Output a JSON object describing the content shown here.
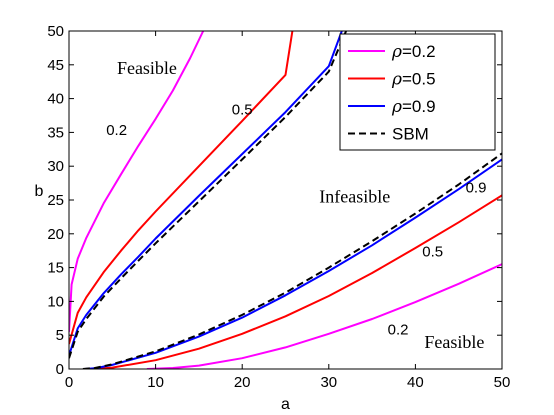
{
  "chart_data": {
    "type": "line",
    "title": "",
    "xlabel": "a",
    "ylabel": "b",
    "xlim": [
      0,
      50
    ],
    "ylim": [
      0,
      50
    ],
    "xticks": [
      0,
      10,
      20,
      30,
      40,
      50
    ],
    "yticks": [
      0,
      5,
      10,
      15,
      20,
      25,
      30,
      35,
      40,
      45,
      50
    ],
    "grid": false,
    "legend_position": "top-right",
    "series": [
      {
        "name": "ρ=0.2",
        "legend_symbol": "ρ",
        "legend_value": "=0.2",
        "color": "#ff00ff",
        "style": "solid",
        "branch": "upper",
        "x": [
          0,
          0.3,
          1,
          2,
          4,
          6,
          8,
          10,
          12,
          14,
          15.5
        ],
        "y": [
          5.5,
          12.5,
          16.3,
          19.4,
          24.5,
          28.8,
          33,
          37,
          41.2,
          46,
          50
        ]
      },
      {
        "name": "ρ=0.2",
        "color": "#ff00ff",
        "style": "solid",
        "branch": "lower",
        "x": [
          9,
          12,
          15,
          20,
          25,
          30,
          35,
          40,
          45,
          50
        ],
        "y": [
          0,
          0.15,
          0.5,
          1.6,
          3.2,
          5.2,
          7.4,
          9.9,
          12.6,
          15.5
        ]
      },
      {
        "name": "ρ=0.5",
        "legend_symbol": "ρ",
        "legend_value": "=0.5",
        "color": "#ff0000",
        "style": "solid",
        "branch": "upper",
        "x": [
          0,
          1,
          2,
          4,
          6,
          8,
          10,
          15,
          20,
          25,
          25.8
        ],
        "y": [
          3.7,
          8.3,
          10.6,
          14.3,
          17.5,
          20.5,
          23.3,
          30,
          36.7,
          43.5,
          50
        ]
      },
      {
        "name": "ρ=0.5",
        "color": "#ff0000",
        "style": "solid",
        "branch": "lower",
        "x": [
          3,
          5,
          10,
          15,
          20,
          25,
          30,
          35,
          40,
          45,
          50
        ],
        "y": [
          0,
          0.2,
          1.3,
          3,
          5.2,
          7.8,
          10.8,
          14.2,
          17.9,
          21.7,
          25.7
        ]
      },
      {
        "name": "ρ=0.9",
        "legend_symbol": "ρ",
        "legend_value": "=0.9",
        "color": "#0000ff",
        "style": "solid",
        "branch": "upper",
        "x": [
          0,
          1,
          2,
          4,
          6,
          8,
          10,
          15,
          20,
          25,
          30,
          31.5
        ],
        "y": [
          2,
          6,
          8,
          11.2,
          14,
          16.6,
          19.3,
          25.6,
          31.8,
          38,
          44.8,
          50
        ]
      },
      {
        "name": "ρ=0.9",
        "color": "#0000ff",
        "style": "solid",
        "branch": "lower",
        "x": [
          1.8,
          3,
          5,
          10,
          15,
          20,
          25,
          30,
          35,
          40,
          45,
          50
        ],
        "y": [
          0,
          0.1,
          0.6,
          2.4,
          4.8,
          7.6,
          10.9,
          14.5,
          18.3,
          22.4,
          26.6,
          31
        ]
      },
      {
        "name": "SBM",
        "legend_symbol": "",
        "legend_value": "SBM",
        "color": "#000000",
        "style": "dashed",
        "branch": "upper",
        "x": [
          0,
          1,
          2,
          4,
          6,
          8,
          10,
          15,
          20,
          25,
          30,
          32
        ],
        "y": [
          1.6,
          5.5,
          7.4,
          10.7,
          13.4,
          16,
          18.6,
          24.8,
          31,
          37.3,
          44,
          50
        ]
      },
      {
        "name": "SBM",
        "color": "#000000",
        "style": "dashed",
        "branch": "lower",
        "x": [
          1.6,
          3,
          5,
          10,
          15,
          20,
          25,
          30,
          35,
          40,
          45,
          50
        ],
        "y": [
          0,
          0.15,
          0.7,
          2.6,
          5.1,
          8,
          11.3,
          15,
          18.9,
          23,
          27.3,
          31.9
        ]
      }
    ],
    "annotations": [
      {
        "text": "0.2",
        "x": 5.5,
        "y": 35.5,
        "kind": "num"
      },
      {
        "text": "0.5",
        "x": 20,
        "y": 38.5,
        "kind": "num"
      },
      {
        "text": "0.9",
        "x": 34.5,
        "y": 47.5,
        "kind": "num"
      },
      {
        "text": "0.9",
        "x": 47,
        "y": 27,
        "kind": "num"
      },
      {
        "text": "0.5",
        "x": 42,
        "y": 17.5,
        "kind": "num"
      },
      {
        "text": "0.2",
        "x": 38,
        "y": 6,
        "kind": "num"
      },
      {
        "text": "Feasible",
        "x": 9,
        "y": 44.5,
        "kind": "text"
      },
      {
        "text": "Infeasible",
        "x": 33,
        "y": 25.5,
        "kind": "text"
      },
      {
        "text": "Feasible",
        "x": 44.5,
        "y": 4,
        "kind": "text"
      }
    ]
  }
}
